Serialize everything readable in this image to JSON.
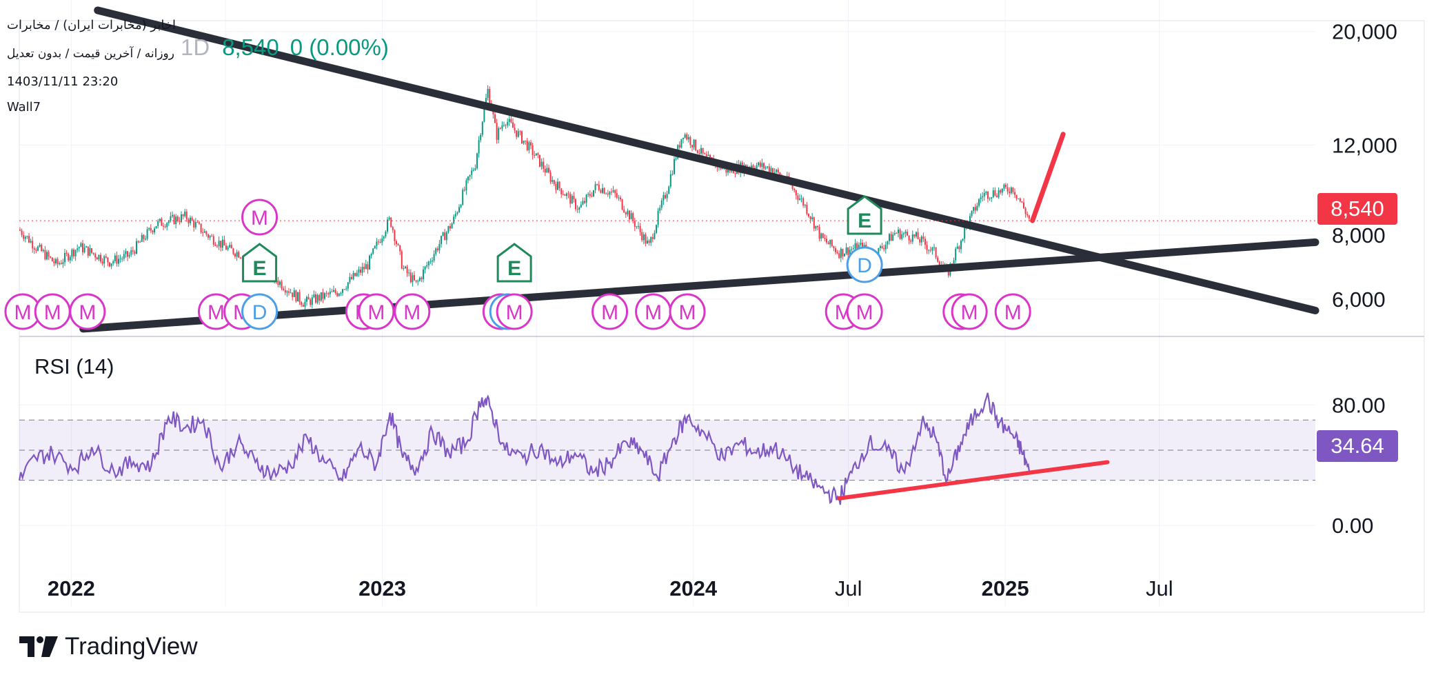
{
  "header": {
    "symbol_line": "اخابر (مخابرات ایران) / مخابرات",
    "settings_line": "روزانه / آخرین قیمت / بدون تعدیل",
    "datetime": "1403/11/11 23:20",
    "author": "Wall7"
  },
  "quote": {
    "timeframe": "1D",
    "last_price": "8,540",
    "change": "0 (0.00%)"
  },
  "brand": {
    "name": "TradingView"
  },
  "colors": {
    "up": "#089981",
    "down": "#f23645",
    "trendline": "#2a2e39",
    "rsi": "#7e57c2",
    "annotation": "#f23645"
  },
  "chart_data": [
    {
      "type": "candlestick",
      "y_ticks": [
        "6,000",
        "8,000",
        "12,000",
        "20,000"
      ],
      "y_scale": "log",
      "ylim": [
        5200,
        21000
      ],
      "last_price_label": "8,540",
      "last_price": 8540,
      "x_ticks": [
        "2022",
        "2023",
        "2024",
        "Jul",
        "2025",
        "Jul"
      ],
      "price_path": [
        [
          "2021-11-01",
          8200
        ],
        [
          "2021-11-20",
          7600
        ],
        [
          "2021-12-15",
          7000
        ],
        [
          "2022-01-10",
          7600
        ],
        [
          "2022-02-15",
          7100
        ],
        [
          "2022-03-10",
          7300
        ],
        [
          "2022-04-10",
          8400
        ],
        [
          "2022-05-15",
          8700
        ],
        [
          "2022-06-10",
          8000
        ],
        [
          "2022-07-05",
          7500
        ],
        [
          "2022-07-25",
          7300
        ],
        [
          "2022-09-01",
          6500
        ],
        [
          "2022-10-01",
          5900
        ],
        [
          "2022-11-10",
          6200
        ],
        [
          "2022-12-15",
          7000
        ],
        [
          "2023-01-10",
          8600
        ],
        [
          "2023-01-25",
          6900
        ],
        [
          "2023-02-10",
          6400
        ],
        [
          "2023-03-01",
          7300
        ],
        [
          "2023-03-25",
          8500
        ],
        [
          "2023-04-20",
          11000
        ],
        [
          "2023-05-05",
          15400
        ],
        [
          "2023-05-15",
          12500
        ],
        [
          "2023-05-25",
          13500
        ],
        [
          "2023-06-20",
          12000
        ],
        [
          "2023-07-20",
          10200
        ],
        [
          "2023-08-20",
          9000
        ],
        [
          "2023-09-10",
          10000
        ],
        [
          "2023-10-01",
          9600
        ],
        [
          "2023-10-25",
          8400
        ],
        [
          "2023-11-10",
          7600
        ],
        [
          "2023-12-01",
          9800
        ],
        [
          "2023-12-20",
          12700
        ],
        [
          "2024-01-15",
          11300
        ],
        [
          "2024-02-10",
          10700
        ],
        [
          "2024-03-10",
          11000
        ],
        [
          "2024-04-01",
          10800
        ],
        [
          "2024-04-20",
          10200
        ],
        [
          "2024-05-10",
          9200
        ],
        [
          "2024-05-30",
          7900
        ],
        [
          "2024-06-20",
          7400
        ],
        [
          "2024-07-15",
          7600
        ],
        [
          "2024-08-01",
          7300
        ],
        [
          "2024-08-25",
          8100
        ],
        [
          "2024-09-20",
          7900
        ],
        [
          "2024-10-10",
          7400
        ],
        [
          "2024-10-25",
          6700
        ],
        [
          "2024-11-15",
          8200
        ],
        [
          "2024-12-05",
          9600
        ],
        [
          "2024-12-20",
          9700
        ],
        [
          "2025-01-10",
          9900
        ],
        [
          "2025-01-30",
          8540
        ]
      ],
      "trendlines": [
        {
          "name": "descending",
          "from": [
            "2022-02-01",
            22000
          ],
          "to": [
            "2025-12-31",
            5700
          ]
        },
        {
          "name": "ascending",
          "from": [
            "2022-01-15",
            5250
          ],
          "to": [
            "2025-12-31",
            7750
          ]
        }
      ],
      "projection_arrow": {
        "from": [
          "2025-02-02",
          8540
        ],
        "to": [
          "2025-03-10",
          12600
        ]
      },
      "events": [
        {
          "type": "M",
          "date": "2021-11-05",
          "row": "bottom"
        },
        {
          "type": "M",
          "date": "2021-12-10",
          "row": "bottom"
        },
        {
          "type": "M",
          "date": "2022-01-20",
          "row": "bottom"
        },
        {
          "type": "M",
          "date": "2022-06-20",
          "row": "bottom"
        },
        {
          "type": "M",
          "date": "2022-07-20",
          "row": "bottom"
        },
        {
          "type": "D",
          "date": "2022-08-10",
          "row": "bottom"
        },
        {
          "type": "E",
          "date": "2022-08-10",
          "row": "middle"
        },
        {
          "type": "M",
          "date": "2022-08-10",
          "row": "top"
        },
        {
          "type": "M",
          "date": "2022-12-10",
          "row": "bottom"
        },
        {
          "type": "M",
          "date": "2022-12-25",
          "row": "bottom"
        },
        {
          "type": "M",
          "date": "2023-02-05",
          "row": "bottom"
        },
        {
          "type": "M",
          "date": "2023-05-20",
          "row": "bottom"
        },
        {
          "type": "D",
          "date": "2023-05-28",
          "row": "bottom"
        },
        {
          "type": "M",
          "date": "2023-06-05",
          "row": "bottom"
        },
        {
          "type": "E",
          "date": "2023-06-05",
          "row": "middle"
        },
        {
          "type": "M",
          "date": "2023-09-25",
          "row": "bottom"
        },
        {
          "type": "M",
          "date": "2023-11-15",
          "row": "bottom"
        },
        {
          "type": "M",
          "date": "2023-12-25",
          "row": "bottom"
        },
        {
          "type": "M",
          "date": "2024-06-25",
          "row": "bottom"
        },
        {
          "type": "M",
          "date": "2024-07-20",
          "row": "bottom"
        },
        {
          "type": "D",
          "date": "2024-07-20",
          "row": "middle"
        },
        {
          "type": "E",
          "date": "2024-07-20",
          "row": "top"
        },
        {
          "type": "M",
          "date": "2024-11-10",
          "row": "bottom"
        },
        {
          "type": "M",
          "date": "2024-11-20",
          "row": "bottom"
        },
        {
          "type": "M",
          "date": "2025-01-10",
          "row": "bottom"
        }
      ]
    },
    {
      "type": "line",
      "title": "RSI (14)",
      "y_ticks": [
        "80.00",
        "0.00"
      ],
      "ylim": [
        -15,
        120
      ],
      "band": [
        30,
        70
      ],
      "midline": 50,
      "last_value_label": "34.64",
      "last_value": 34.64,
      "series": [
        {
          "x": [
            "2021-11-01",
            "2021-11-20",
            "2021-12-10",
            "2022-01-05",
            "2022-01-25",
            "2022-02-20",
            "2022-03-15",
            "2022-04-05",
            "2022-04-25",
            "2022-05-15",
            "2022-06-05",
            "2022-06-25",
            "2022-07-15",
            "2022-08-05",
            "2022-08-25",
            "2022-09-15",
            "2022-10-05",
            "2022-10-25",
            "2022-11-15",
            "2022-12-05",
            "2022-12-25",
            "2023-01-10",
            "2023-01-25",
            "2023-02-10",
            "2023-03-01",
            "2023-03-20",
            "2023-04-10",
            "2023-04-28",
            "2023-05-08",
            "2023-05-25",
            "2023-06-15",
            "2023-07-05",
            "2023-07-25",
            "2023-08-15",
            "2023-09-05",
            "2023-09-25",
            "2023-10-15",
            "2023-11-01",
            "2023-11-20",
            "2023-12-10",
            "2023-12-25",
            "2024-01-15",
            "2024-02-05",
            "2024-02-25",
            "2024-03-15",
            "2024-04-05",
            "2024-04-25",
            "2024-05-15",
            "2024-06-05",
            "2024-06-20",
            "2024-07-05",
            "2024-07-25",
            "2024-08-15",
            "2024-09-05",
            "2024-09-25",
            "2024-10-10",
            "2024-10-25",
            "2024-11-10",
            "2024-11-25",
            "2024-12-10",
            "2024-12-25",
            "2025-01-10",
            "2025-01-20",
            "2025-01-30"
          ],
          "values": [
            30,
            45,
            48,
            38,
            52,
            36,
            42,
            40,
            72,
            65,
            70,
            38,
            55,
            42,
            34,
            40,
            58,
            42,
            30,
            52,
            40,
            75,
            45,
            38,
            62,
            48,
            55,
            85,
            78,
            50,
            45,
            52,
            40,
            48,
            35,
            42,
            55,
            50,
            32,
            58,
            72,
            60,
            45,
            55,
            48,
            52,
            40,
            30,
            22,
            18,
            35,
            55,
            50,
            35,
            68,
            60,
            30,
            55,
            72,
            85,
            68,
            60,
            50,
            34.64
          ]
        }
      ],
      "divergence_line": {
        "from": [
          "2024-06-20",
          18
        ],
        "to": [
          "2025-05-01",
          42
        ]
      }
    }
  ]
}
